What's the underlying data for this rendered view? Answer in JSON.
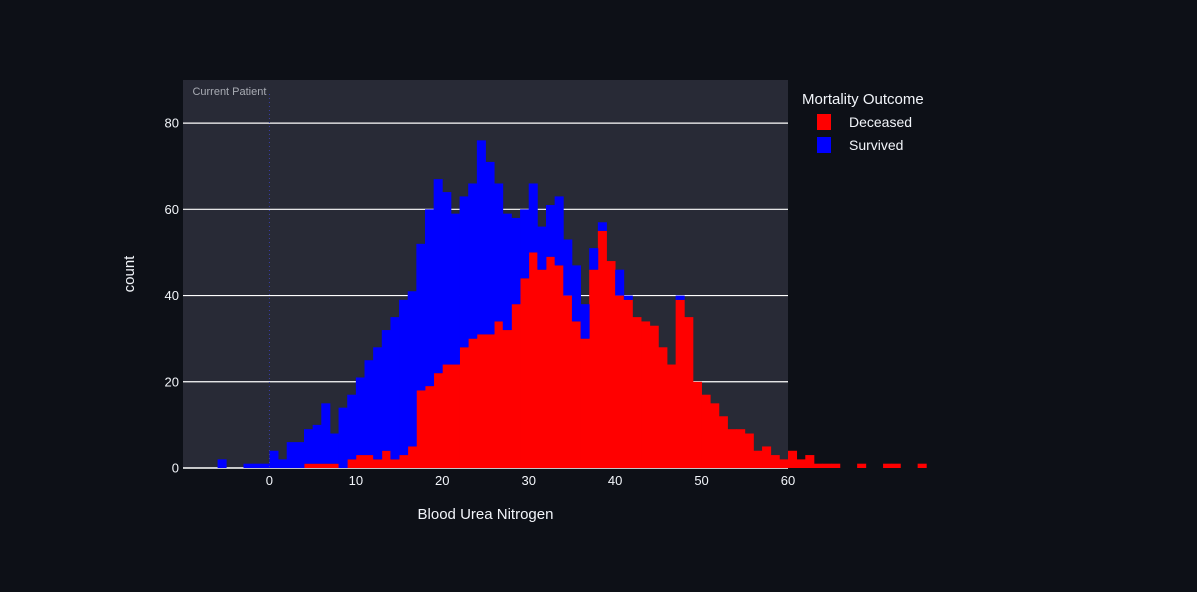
{
  "chart_data": {
    "type": "bar",
    "barmode": "overlay-stacked",
    "xlabel": "Blood Urea Nitrogen",
    "ylabel": "count",
    "xlim": [
      -10,
      60
    ],
    "ylim": [
      0,
      90
    ],
    "xticks": [
      0,
      10,
      20,
      30,
      40,
      50,
      60
    ],
    "yticks": [
      0,
      20,
      40,
      60,
      80
    ],
    "grid": true,
    "bin_width": 1,
    "bin_start": -6,
    "legend": {
      "title": "Mortality Outcome",
      "placement": "right-top"
    },
    "annotation": {
      "text": "Current Patient",
      "x": 0
    },
    "colors": {
      "paper": "#0d1017",
      "plot": "#282a36",
      "grid": "#ffffff",
      "vline": "#3a3fa8",
      "text": "#f2f5fa"
    },
    "series": [
      {
        "name": "Deceased",
        "color": "#ff0000",
        "values": [
          0,
          0,
          0,
          0,
          0,
          0,
          0,
          0,
          0,
          0,
          1,
          1,
          1,
          1,
          0,
          2,
          3,
          3,
          2,
          4,
          2,
          3,
          5,
          18,
          19,
          22,
          24,
          24,
          28,
          30,
          31,
          31,
          34,
          32,
          38,
          44,
          50,
          46,
          49,
          47,
          40,
          34,
          30,
          46,
          55,
          48,
          40,
          39,
          35,
          34,
          33,
          28,
          24,
          39,
          35,
          20,
          17,
          15,
          12,
          9,
          9,
          8,
          4,
          5,
          3,
          2,
          4,
          2,
          3,
          1,
          1,
          1,
          0,
          0,
          1,
          0,
          0,
          1,
          1,
          0,
          0,
          1
        ]
      },
      {
        "name": "Survived",
        "color": "#0000ff",
        "values": [
          2,
          0,
          0,
          1,
          1,
          1,
          4,
          2,
          6,
          6,
          8,
          9,
          14,
          7,
          14,
          15,
          18,
          22,
          26,
          28,
          33,
          36,
          36,
          34,
          41,
          45,
          40,
          35,
          35,
          36,
          45,
          40,
          32,
          27,
          20,
          16,
          16,
          10,
          12,
          16,
          13,
          13,
          8,
          5,
          2,
          0,
          6,
          1,
          0,
          0,
          0,
          0,
          0,
          1,
          0,
          0,
          0,
          0,
          0,
          0,
          0,
          0,
          0,
          0,
          0,
          0,
          0,
          0,
          0,
          0,
          0,
          0,
          0,
          0,
          0,
          0,
          0,
          0,
          0,
          0,
          0
        ]
      }
    ]
  }
}
